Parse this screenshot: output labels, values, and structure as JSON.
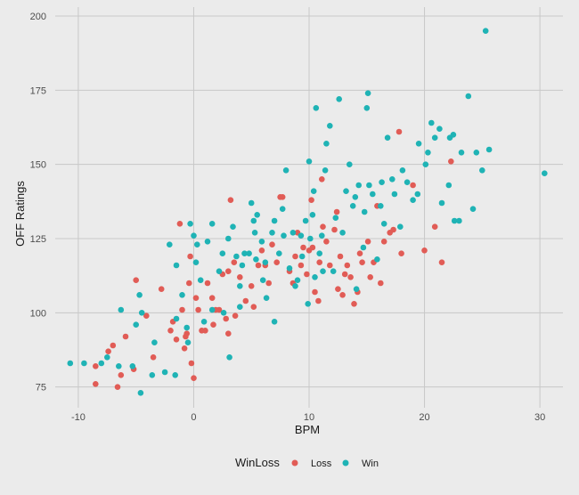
{
  "chart_data": {
    "type": "scatter",
    "xlabel": "BPM",
    "ylabel": "OFF Ratings",
    "xlim": [
      -12,
      32
    ],
    "ylim": [
      68,
      203
    ],
    "x_ticks": [
      -10,
      0,
      10,
      20,
      30
    ],
    "y_ticks": [
      75,
      100,
      125,
      150,
      175,
      200
    ],
    "x_tick_labels": [
      "-10",
      "0",
      "10",
      "20",
      "30"
    ],
    "y_tick_labels": [
      "75",
      "100",
      "125",
      "150",
      "175",
      "200"
    ],
    "grid": true,
    "legend": {
      "title": "WinLoss",
      "position": "bottom",
      "entries": [
        {
          "label": "Loss",
          "color": "#e15c56"
        },
        {
          "label": "Win",
          "color": "#1fb3b5"
        }
      ]
    },
    "colors": {
      "background": "#ebebeb",
      "grid": "#c8c8c8",
      "loss": "#e15c56",
      "win": "#1fb3b5"
    },
    "series": [
      {
        "name": "Loss",
        "points": [
          [
            -8.5,
            76
          ],
          [
            -8.5,
            82
          ],
          [
            -7.4,
            87
          ],
          [
            -7,
            89
          ],
          [
            -6.6,
            75
          ],
          [
            -6.3,
            79
          ],
          [
            -5.9,
            92
          ],
          [
            -5.2,
            81
          ],
          [
            -5,
            111
          ],
          [
            -4.1,
            99
          ],
          [
            -3.5,
            85
          ],
          [
            -2.8,
            108
          ],
          [
            -2,
            94
          ],
          [
            -1.8,
            97
          ],
          [
            -1.5,
            91
          ],
          [
            -1.2,
            130
          ],
          [
            -1,
            101
          ],
          [
            -0.8,
            88
          ],
          [
            -0.7,
            92
          ],
          [
            -0.6,
            93
          ],
          [
            -0.4,
            110
          ],
          [
            -0.3,
            119
          ],
          [
            -0.2,
            83
          ],
          [
            0,
            78
          ],
          [
            0.2,
            105
          ],
          [
            0.4,
            101
          ],
          [
            0.7,
            94
          ],
          [
            1,
            94
          ],
          [
            1.2,
            110
          ],
          [
            1.6,
            105
          ],
          [
            1.7,
            96
          ],
          [
            1.9,
            101
          ],
          [
            2.2,
            101
          ],
          [
            2.5,
            113
          ],
          [
            2.8,
            98
          ],
          [
            3,
            93
          ],
          [
            3,
            114
          ],
          [
            3.2,
            138
          ],
          [
            3.5,
            117
          ],
          [
            3.6,
            99
          ],
          [
            4,
            112
          ],
          [
            4.5,
            104
          ],
          [
            5,
            109
          ],
          [
            5.2,
            102
          ],
          [
            5.6,
            116
          ],
          [
            5.9,
            121
          ],
          [
            6.2,
            116
          ],
          [
            6.5,
            110
          ],
          [
            6.8,
            123
          ],
          [
            7.2,
            117
          ],
          [
            7.5,
            139
          ],
          [
            7.7,
            139
          ],
          [
            8.3,
            114
          ],
          [
            8.6,
            110
          ],
          [
            8.8,
            119
          ],
          [
            9,
            127
          ],
          [
            9.3,
            116
          ],
          [
            9.5,
            122
          ],
          [
            9.8,
            113
          ],
          [
            10,
            121
          ],
          [
            10.2,
            138
          ],
          [
            10.3,
            122
          ],
          [
            10.5,
            107
          ],
          [
            10.8,
            104
          ],
          [
            10.9,
            117
          ],
          [
            11.1,
            145
          ],
          [
            11.2,
            129
          ],
          [
            11.5,
            124
          ],
          [
            11.8,
            116
          ],
          [
            12.2,
            128
          ],
          [
            12.4,
            134
          ],
          [
            12.7,
            119
          ],
          [
            12.5,
            108
          ],
          [
            12.9,
            106
          ],
          [
            13.1,
            113
          ],
          [
            13.3,
            116
          ],
          [
            13.6,
            112
          ],
          [
            13.9,
            103
          ],
          [
            14.2,
            107
          ],
          [
            14.4,
            120
          ],
          [
            14.6,
            117
          ],
          [
            15.1,
            124
          ],
          [
            15.3,
            112
          ],
          [
            15.6,
            117
          ],
          [
            15.9,
            136
          ],
          [
            16.2,
            110
          ],
          [
            16.5,
            124
          ],
          [
            17,
            127
          ],
          [
            17.3,
            128
          ],
          [
            17.8,
            161
          ],
          [
            18,
            120
          ],
          [
            19,
            143
          ],
          [
            20,
            121
          ],
          [
            20.9,
            129
          ],
          [
            21.5,
            117
          ],
          [
            22.3,
            151
          ]
        ]
      },
      {
        "name": "Win",
        "points": [
          [
            -10.7,
            83
          ],
          [
            -9.5,
            83
          ],
          [
            -8,
            83
          ],
          [
            -7.5,
            85
          ],
          [
            -6.5,
            82
          ],
          [
            -6.3,
            101
          ],
          [
            -5.3,
            82
          ],
          [
            -5,
            96
          ],
          [
            -4.7,
            106
          ],
          [
            -4.6,
            73
          ],
          [
            -4.5,
            100
          ],
          [
            -3.6,
            79
          ],
          [
            -3.4,
            90
          ],
          [
            -2.5,
            80
          ],
          [
            -2.1,
            123
          ],
          [
            -1.6,
            79
          ],
          [
            -1.5,
            98
          ],
          [
            -1.5,
            116
          ],
          [
            -1,
            106
          ],
          [
            -0.6,
            95
          ],
          [
            -0.5,
            90
          ],
          [
            -0.3,
            130
          ],
          [
            0,
            126
          ],
          [
            0.2,
            117
          ],
          [
            0.3,
            123
          ],
          [
            0.6,
            111
          ],
          [
            0.9,
            97
          ],
          [
            1.2,
            124
          ],
          [
            1.6,
            130
          ],
          [
            1.6,
            101
          ],
          [
            2.2,
            114
          ],
          [
            2.5,
            120
          ],
          [
            2.6,
            100
          ],
          [
            3,
            125
          ],
          [
            3.1,
            85
          ],
          [
            3.4,
            129
          ],
          [
            3.7,
            119
          ],
          [
            4,
            109
          ],
          [
            4,
            102
          ],
          [
            4.2,
            116
          ],
          [
            4.4,
            120
          ],
          [
            4.8,
            120
          ],
          [
            5.2,
            131
          ],
          [
            5,
            137
          ],
          [
            5.3,
            127
          ],
          [
            5.4,
            118
          ],
          [
            5.5,
            133
          ],
          [
            5.9,
            124
          ],
          [
            6,
            111
          ],
          [
            6.2,
            117
          ],
          [
            6.3,
            105
          ],
          [
            6.8,
            127
          ],
          [
            7,
            131
          ],
          [
            7,
            97
          ],
          [
            7.4,
            120
          ],
          [
            7.7,
            135
          ],
          [
            7.8,
            126
          ],
          [
            8,
            148
          ],
          [
            8.3,
            115
          ],
          [
            8.6,
            127
          ],
          [
            8.8,
            109
          ],
          [
            9,
            111
          ],
          [
            9.3,
            126
          ],
          [
            9.4,
            119
          ],
          [
            9.7,
            131
          ],
          [
            9.9,
            103
          ],
          [
            10,
            151
          ],
          [
            10.1,
            125
          ],
          [
            10.3,
            133
          ],
          [
            10.4,
            141
          ],
          [
            10.5,
            112
          ],
          [
            10.6,
            169
          ],
          [
            10.9,
            120
          ],
          [
            11.1,
            126
          ],
          [
            11.2,
            114
          ],
          [
            11.4,
            148
          ],
          [
            11.5,
            157
          ],
          [
            11.8,
            163
          ],
          [
            12.1,
            114
          ],
          [
            12.3,
            132
          ],
          [
            12.6,
            172
          ],
          [
            12.9,
            127
          ],
          [
            13.2,
            141
          ],
          [
            13.5,
            150
          ],
          [
            13.8,
            136
          ],
          [
            14,
            139
          ],
          [
            14.1,
            108
          ],
          [
            14.3,
            143
          ],
          [
            14.7,
            122
          ],
          [
            14.8,
            134
          ],
          [
            15,
            169
          ],
          [
            15.1,
            174
          ],
          [
            15.2,
            143
          ],
          [
            15.5,
            140
          ],
          [
            15.9,
            118
          ],
          [
            16.2,
            136
          ],
          [
            16.3,
            144
          ],
          [
            16.5,
            130
          ],
          [
            16.8,
            159
          ],
          [
            17.2,
            145
          ],
          [
            17.4,
            140
          ],
          [
            17.9,
            129
          ],
          [
            18.1,
            148
          ],
          [
            18.5,
            144
          ],
          [
            19,
            138
          ],
          [
            19.4,
            140
          ],
          [
            19.5,
            157
          ],
          [
            20.1,
            150
          ],
          [
            20.3,
            154
          ],
          [
            20.6,
            164
          ],
          [
            20.9,
            159
          ],
          [
            21.3,
            162
          ],
          [
            21.5,
            137
          ],
          [
            22.1,
            143
          ],
          [
            22.2,
            159
          ],
          [
            22.5,
            160
          ],
          [
            22.6,
            131
          ],
          [
            23,
            131
          ],
          [
            23.2,
            154
          ],
          [
            23.8,
            173
          ],
          [
            24.2,
            135
          ],
          [
            24.5,
            154
          ],
          [
            25,
            148
          ],
          [
            25.3,
            195
          ],
          [
            25.6,
            155
          ],
          [
            30.4,
            147
          ]
        ]
      }
    ]
  }
}
